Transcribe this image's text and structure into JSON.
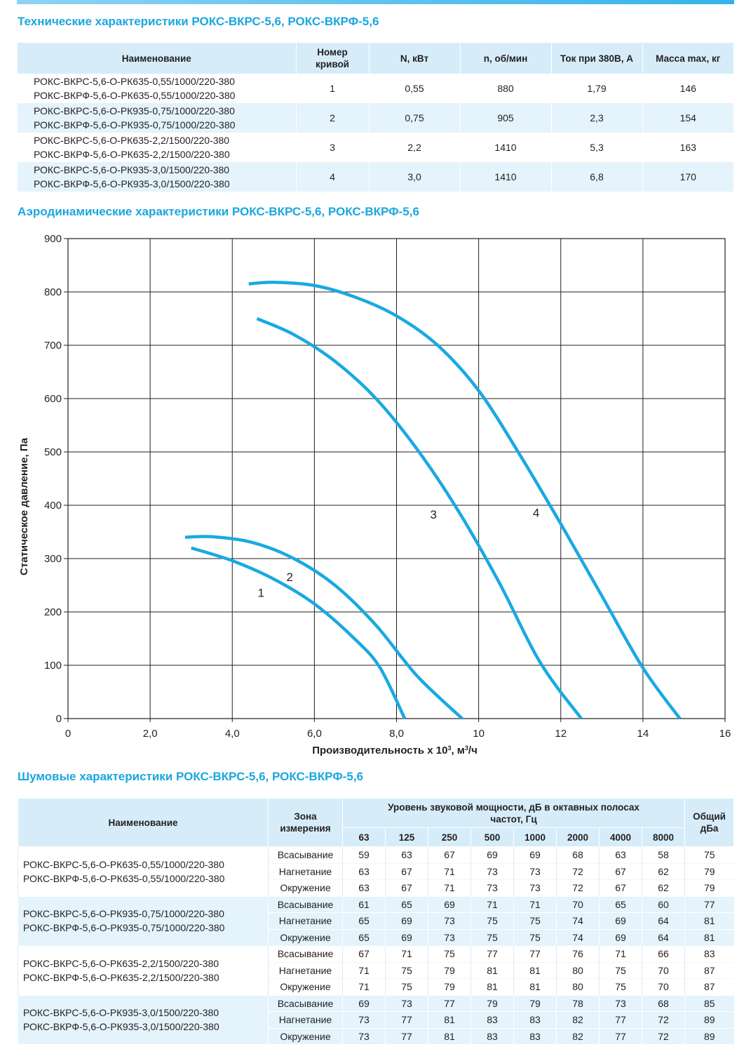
{
  "titles": {
    "tech": "Технические характеристики РОКС-ВКРС-5,6, РОКС-ВКРФ-5,6",
    "aero": "Аэродинамические характеристики РОКС-ВКРС-5,6, РОКС-ВКРФ-5,6",
    "noise": "Шумовые характеристики РОКС-ВКРС-5,6, РОКС-ВКРФ-5,6"
  },
  "tech_table": {
    "headers": {
      "name": "Наименование",
      "curve_1": "Номер",
      "curve_2": "кривой",
      "power": "N, кВт",
      "rpm": "n, об/мин",
      "current": "Ток при 380В, А",
      "mass": "Масса max, кг"
    },
    "rows": [
      {
        "name1": "РОКС-ВКРС-5,6-О-РК635-0,55/1000/220-380",
        "name2": "РОКС-ВКРФ-5,6-О-РК635-0,55/1000/220-380",
        "curve": "1",
        "power": "0,55",
        "rpm": "880",
        "current": "1,79",
        "mass": "146"
      },
      {
        "name1": "РОКС-ВКРС-5,6-О-РК935-0,75/1000/220-380",
        "name2": "РОКС-ВКРФ-5,6-О-РК935-0,75/1000/220-380",
        "curve": "2",
        "power": "0,75",
        "rpm": "905",
        "current": "2,3",
        "mass": "154"
      },
      {
        "name1": "РОКС-ВКРС-5,6-О-РК635-2,2/1500/220-380",
        "name2": "РОКС-ВКРФ-5,6-О-РК635-2,2/1500/220-380",
        "curve": "3",
        "power": "2,2",
        "rpm": "1410",
        "current": "5,3",
        "mass": "163"
      },
      {
        "name1": "РОКС-ВКРС-5,6-О-РК935-3,0/1500/220-380",
        "name2": "РОКС-ВКРФ-5,6-О-РК935-3,0/1500/220-380",
        "curve": "4",
        "power": "3,0",
        "rpm": "1410",
        "current": "6,8",
        "mass": "170"
      }
    ]
  },
  "chart_data": {
    "type": "line",
    "ylabel": "Статическое давление, Па",
    "xlabel_main": "Производительность x 10",
    "xlabel_exp": "3",
    "xlabel_unit": ", м",
    "xlabel_unit_exp": "3",
    "xlabel_tail": "/ч",
    "xlim": [
      0,
      16
    ],
    "ylim": [
      0,
      900
    ],
    "grid": true,
    "x_ticks": [
      {
        "v": 0,
        "label": "0"
      },
      {
        "v": 2,
        "label": "2,0"
      },
      {
        "v": 4,
        "label": "4,0"
      },
      {
        "v": 6,
        "label": "6,0"
      },
      {
        "v": 8,
        "label": "8,0"
      },
      {
        "v": 10,
        "label": "10"
      },
      {
        "v": 12,
        "label": "12"
      },
      {
        "v": 14,
        "label": "14"
      },
      {
        "v": 16,
        "label": "16"
      }
    ],
    "y_ticks": [
      {
        "v": 0,
        "label": "0"
      },
      {
        "v": 100,
        "label": "100"
      },
      {
        "v": 200,
        "label": "200"
      },
      {
        "v": 300,
        "label": "300"
      },
      {
        "v": 400,
        "label": "400"
      },
      {
        "v": 500,
        "label": "500"
      },
      {
        "v": 600,
        "label": "600"
      },
      {
        "v": 700,
        "label": "700"
      },
      {
        "v": 800,
        "label": "800"
      },
      {
        "v": 900,
        "label": "900"
      }
    ],
    "color": "#1aa9e1",
    "series": [
      {
        "label": "1",
        "label_at": [
          4.7,
          228
        ],
        "points": [
          [
            3.0,
            320
          ],
          [
            4.0,
            296
          ],
          [
            5.0,
            262
          ],
          [
            6.0,
            215
          ],
          [
            7.0,
            148
          ],
          [
            7.6,
            95
          ],
          [
            8.2,
            0
          ]
        ]
      },
      {
        "label": "2",
        "label_at": [
          5.4,
          258
        ],
        "points": [
          [
            2.85,
            340
          ],
          [
            3.5,
            341
          ],
          [
            4.5,
            330
          ],
          [
            5.5,
            300
          ],
          [
            6.5,
            250
          ],
          [
            7.5,
            175
          ],
          [
            8.5,
            80
          ],
          [
            9.6,
            0
          ]
        ]
      },
      {
        "label": "3",
        "label_at": [
          8.9,
          375
        ],
        "points": [
          [
            4.6,
            750
          ],
          [
            5.5,
            720
          ],
          [
            6.5,
            670
          ],
          [
            7.5,
            600
          ],
          [
            8.5,
            505
          ],
          [
            9.5,
            390
          ],
          [
            10.5,
            255
          ],
          [
            11.5,
            105
          ],
          [
            12.5,
            0
          ]
        ]
      },
      {
        "label": "4",
        "label_at": [
          11.4,
          378
        ],
        "points": [
          [
            4.4,
            815
          ],
          [
            5.0,
            818
          ],
          [
            6.0,
            812
          ],
          [
            7.0,
            790
          ],
          [
            8.0,
            755
          ],
          [
            9.0,
            700
          ],
          [
            10.0,
            615
          ],
          [
            11.0,
            495
          ],
          [
            12.0,
            365
          ],
          [
            13.0,
            230
          ],
          [
            14.0,
            95
          ],
          [
            14.9,
            0
          ]
        ]
      }
    ]
  },
  "noise_table": {
    "headers": {
      "name": "Наименование",
      "zone_1": "Зона",
      "zone_2": "измерения",
      "level_1": "Уровень звуковой мощности, дБ в октавных полосах",
      "level_2": "частот, Гц",
      "total_1": "Общий",
      "total_2": "дБа",
      "freqs": [
        "63",
        "125",
        "250",
        "500",
        "1000",
        "2000",
        "4000",
        "8000"
      ]
    },
    "groups": [
      {
        "name1": "РОКС-ВКРС-5,6-О-РК635-0,55/1000/220-380",
        "name2": "РОКС-ВКРФ-5,6-О-РК635-0,55/1000/220-380",
        "rows": [
          {
            "zone": "Всасывание",
            "vals": [
              "59",
              "63",
              "67",
              "69",
              "69",
              "68",
              "63",
              "58"
            ],
            "total": "75"
          },
          {
            "zone": "Нагнетание",
            "vals": [
              "63",
              "67",
              "71",
              "73",
              "73",
              "72",
              "67",
              "62"
            ],
            "total": "79"
          },
          {
            "zone": "Окружение",
            "vals": [
              "63",
              "67",
              "71",
              "73",
              "73",
              "72",
              "67",
              "62"
            ],
            "total": "79"
          }
        ]
      },
      {
        "name1": "РОКС-ВКРС-5,6-О-РК935-0,75/1000/220-380",
        "name2": "РОКС-ВКРФ-5,6-О-РК935-0,75/1000/220-380",
        "rows": [
          {
            "zone": "Всасывание",
            "vals": [
              "61",
              "65",
              "69",
              "71",
              "71",
              "70",
              "65",
              "60"
            ],
            "total": "77"
          },
          {
            "zone": "Нагнетание",
            "vals": [
              "65",
              "69",
              "73",
              "75",
              "75",
              "74",
              "69",
              "64"
            ],
            "total": "81"
          },
          {
            "zone": "Окружение",
            "vals": [
              "65",
              "69",
              "73",
              "75",
              "75",
              "74",
              "69",
              "64"
            ],
            "total": "81"
          }
        ]
      },
      {
        "name1": "РОКС-ВКРС-5,6-О-РК635-2,2/1500/220-380",
        "name2": "РОКС-ВКРФ-5,6-О-РК635-2,2/1500/220-380",
        "rows": [
          {
            "zone": "Всасывание",
            "vals": [
              "67",
              "71",
              "75",
              "77",
              "77",
              "76",
              "71",
              "66"
            ],
            "total": "83"
          },
          {
            "zone": "Нагнетание",
            "vals": [
              "71",
              "75",
              "79",
              "81",
              "81",
              "80",
              "75",
              "70"
            ],
            "total": "87"
          },
          {
            "zone": "Окружение",
            "vals": [
              "71",
              "75",
              "79",
              "81",
              "81",
              "80",
              "75",
              "70"
            ],
            "total": "87"
          }
        ]
      },
      {
        "name1": "РОКС-ВКРС-5,6-О-РК935-3,0/1500/220-380",
        "name2": "РОКС-ВКРФ-5,6-О-РК935-3,0/1500/220-380",
        "rows": [
          {
            "zone": "Всасывание",
            "vals": [
              "69",
              "73",
              "77",
              "79",
              "79",
              "78",
              "73",
              "68"
            ],
            "total": "85"
          },
          {
            "zone": "Нагнетание",
            "vals": [
              "73",
              "77",
              "81",
              "83",
              "83",
              "82",
              "77",
              "72"
            ],
            "total": "89"
          },
          {
            "zone": "Окружение",
            "vals": [
              "73",
              "77",
              "81",
              "83",
              "83",
              "82",
              "77",
              "72"
            ],
            "total": "89"
          }
        ]
      }
    ]
  }
}
